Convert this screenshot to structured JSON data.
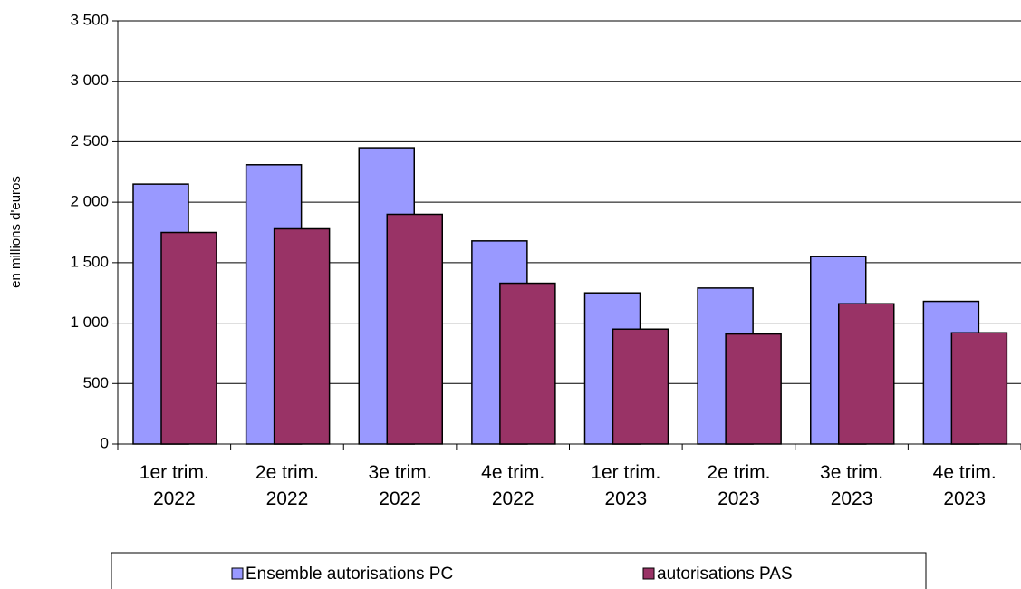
{
  "chart_data": {
    "type": "bar",
    "y_label": "en millions d'euros",
    "categories": [
      "1er trim. 2022",
      "2e trim. 2022",
      "3e trim. 2022",
      "4e trim. 2022",
      "1er trim. 2023",
      "2e trim. 2023",
      "3e trim. 2023",
      "4e trim. 2023"
    ],
    "series": [
      {
        "name": "Ensemble autorisations PC",
        "color": "#9999ff",
        "values": [
          2150,
          2310,
          2450,
          1680,
          1250,
          1290,
          1550,
          1180
        ]
      },
      {
        "name": "autorisations PAS",
        "color": "#993366",
        "values": [
          1750,
          1780,
          1900,
          1330,
          950,
          910,
          1160,
          920
        ]
      }
    ],
    "ylim": [
      0,
      3500
    ],
    "yticks": [
      0,
      500,
      {
        "value": 1000,
        "label": "1 000"
      },
      {
        "value": 1500,
        "label": "1 500"
      },
      {
        "value": 2000,
        "label": "2 000"
      },
      {
        "value": 2500,
        "label": "2 500"
      },
      {
        "value": 3000,
        "label": "3 000"
      },
      {
        "value": 3500,
        "label": "3 500"
      }
    ],
    "grid": true
  }
}
